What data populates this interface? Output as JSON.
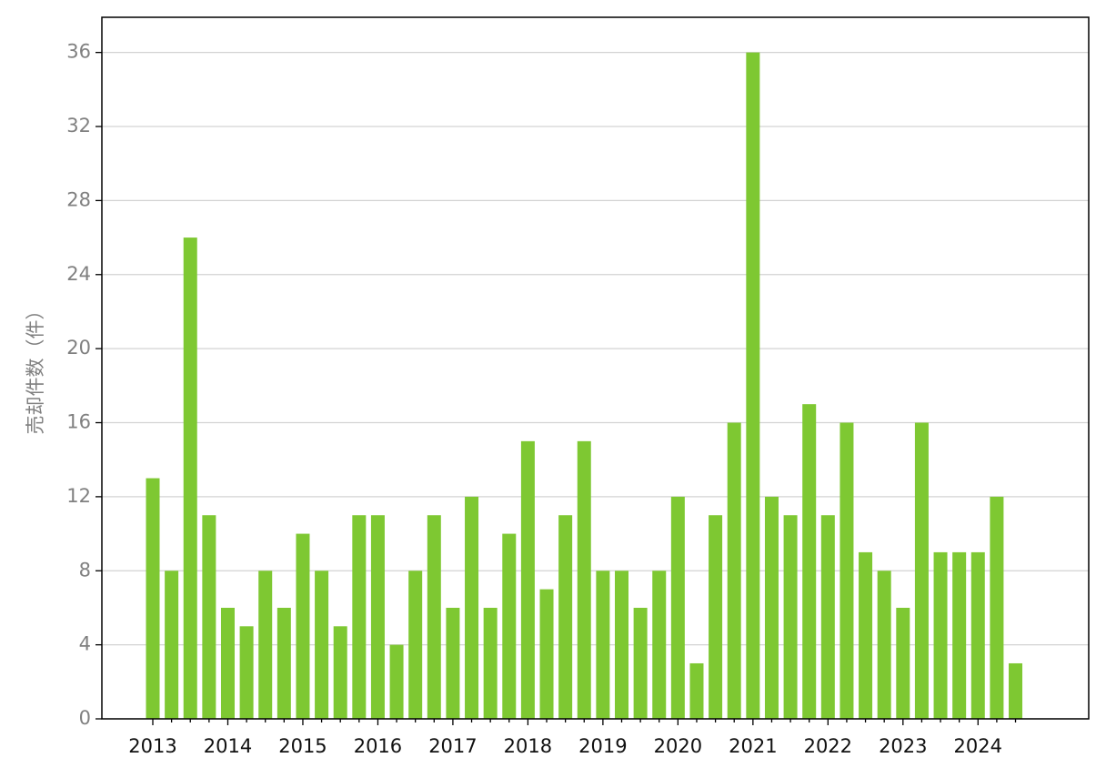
{
  "chart_data": {
    "type": "bar",
    "y_label": "売却件数（件）",
    "categories": [
      "2013",
      null,
      null,
      null,
      "2014",
      null,
      null,
      null,
      "2015",
      null,
      null,
      null,
      "2016",
      null,
      null,
      null,
      "2017",
      null,
      null,
      null,
      "2018",
      null,
      null,
      null,
      "2019",
      null,
      null,
      null,
      "2020",
      null,
      null,
      null,
      "2021",
      null,
      null,
      null,
      "2022",
      null,
      null,
      null,
      "2023",
      null,
      null,
      null,
      "2024",
      null,
      null
    ],
    "values": [
      13,
      8,
      26,
      11,
      6,
      5,
      8,
      6,
      10,
      8,
      5,
      11,
      11,
      4,
      8,
      11,
      6,
      12,
      6,
      10,
      15,
      7,
      11,
      15,
      8,
      8,
      6,
      8,
      12,
      3,
      11,
      16,
      36,
      12,
      11,
      17,
      11,
      16,
      9,
      8,
      6,
      16,
      9,
      9,
      9,
      12,
      3
    ],
    "color": "#7ec832",
    "ylim": [
      0,
      37.9
    ],
    "yticks": [
      0,
      4,
      8,
      12,
      16,
      20,
      24,
      28,
      32,
      36
    ],
    "grid": true
  }
}
